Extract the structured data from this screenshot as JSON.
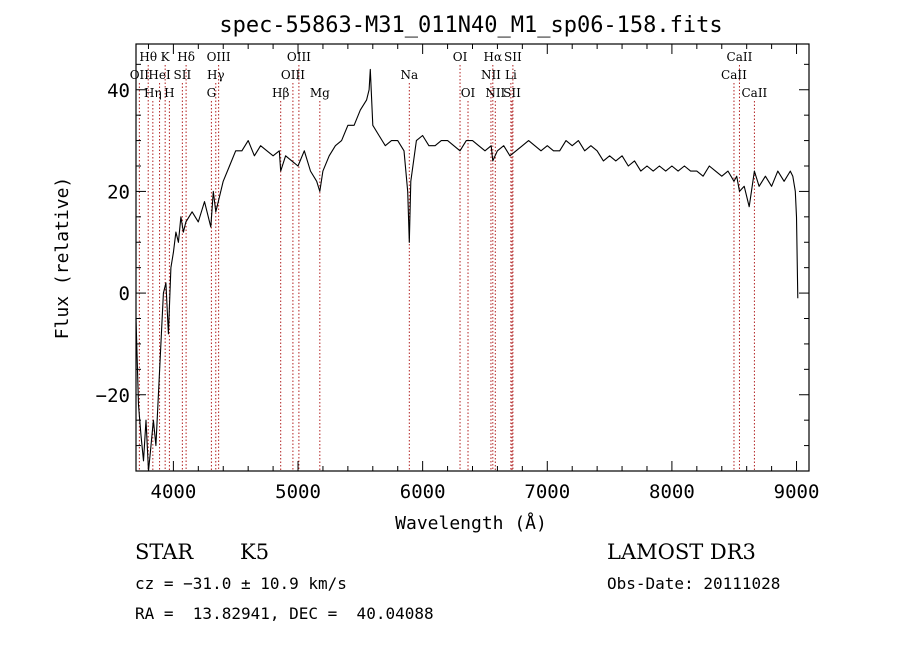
{
  "chart_data": {
    "type": "line",
    "title": "spec-55863-M31_011N40_M1_sp06-158.fits",
    "xlabel": "Wavelength (Å)",
    "ylabel": "Flux (relative)",
    "xlim": [
      3700,
      9100
    ],
    "ylim": [
      -35,
      49
    ],
    "x_ticks": [
      4000,
      5000,
      6000,
      7000,
      8000,
      9000
    ],
    "x_tick_labels": [
      "4000",
      "5000",
      "6000",
      "7000",
      "8000",
      "9000"
    ],
    "y_ticks": [
      -20,
      0,
      20,
      40
    ],
    "y_tick_labels": [
      "−20",
      "0",
      "20",
      "40"
    ],
    "grid": false,
    "series": [
      {
        "name": "spectrum",
        "color": "#000000",
        "x": [
          3700,
          3720,
          3740,
          3760,
          3780,
          3800,
          3820,
          3840,
          3860,
          3880,
          3900,
          3920,
          3940,
          3960,
          3980,
          4000,
          4020,
          4040,
          4060,
          4080,
          4100,
          4150,
          4200,
          4250,
          4300,
          4320,
          4340,
          4360,
          4400,
          4450,
          4500,
          4550,
          4600,
          4650,
          4700,
          4750,
          4800,
          4850,
          4861,
          4900,
          4950,
          5000,
          5050,
          5100,
          5150,
          5175,
          5200,
          5250,
          5300,
          5350,
          5400,
          5450,
          5500,
          5550,
          5570,
          5580,
          5600,
          5650,
          5700,
          5750,
          5800,
          5850,
          5880,
          5893,
          5905,
          5950,
          6000,
          6050,
          6100,
          6150,
          6200,
          6250,
          6300,
          6350,
          6400,
          6450,
          6500,
          6550,
          6563,
          6600,
          6650,
          6700,
          6750,
          6800,
          6850,
          6900,
          6950,
          7000,
          7050,
          7100,
          7150,
          7200,
          7250,
          7300,
          7350,
          7400,
          7450,
          7500,
          7550,
          7600,
          7650,
          7700,
          7750,
          7800,
          7850,
          7900,
          7950,
          8000,
          8050,
          8100,
          8150,
          8200,
          8250,
          8300,
          8350,
          8400,
          8450,
          8498,
          8520,
          8542,
          8580,
          8620,
          8662,
          8700,
          8750,
          8800,
          8850,
          8900,
          8950,
          8970,
          8990,
          9000,
          9010
        ],
        "y": [
          -5,
          -22,
          -28,
          -33,
          -25,
          -35,
          -30,
          -25,
          -30,
          -20,
          -10,
          0,
          2,
          -8,
          5,
          8,
          12,
          10,
          15,
          12,
          14,
          16,
          14,
          18,
          13,
          20,
          16,
          18,
          22,
          25,
          28,
          28,
          30,
          27,
          29,
          28,
          27,
          28,
          24,
          27,
          26,
          25,
          28,
          24,
          22,
          20,
          24,
          27,
          29,
          30,
          33,
          33,
          36,
          38,
          40,
          44,
          33,
          31,
          29,
          30,
          30,
          28,
          20,
          10,
          22,
          30,
          31,
          29,
          29,
          30,
          30,
          29,
          28,
          30,
          30,
          29,
          28,
          29,
          26,
          28,
          29,
          27,
          28,
          29,
          30,
          29,
          28,
          29,
          28,
          28,
          30,
          29,
          30,
          28,
          29,
          28,
          26,
          27,
          26,
          27,
          25,
          26,
          24,
          25,
          24,
          25,
          24,
          25,
          24,
          25,
          24,
          24,
          23,
          25,
          24,
          23,
          24,
          22,
          23,
          20,
          21,
          17,
          24,
          21,
          23,
          21,
          24,
          22,
          24,
          23,
          20,
          15,
          -1
        ]
      }
    ],
    "spectral_lines": [
      {
        "name": "Hθ",
        "x": 3798,
        "row": 1
      },
      {
        "name": "OII",
        "x": 3727,
        "row": 2
      },
      {
        "name": "Hη",
        "x": 3835,
        "row": 3
      },
      {
        "name": "HeI",
        "x": 3889,
        "row": 2
      },
      {
        "name": "K",
        "x": 3934,
        "row": 1
      },
      {
        "name": "SII",
        "x": 4072,
        "row": 2
      },
      {
        "name": "H",
        "x": 3968,
        "row": 3
      },
      {
        "name": "Hδ",
        "x": 4102,
        "row": 1
      },
      {
        "name": "OIII",
        "x": 4363,
        "row": 1
      },
      {
        "name": "Hγ",
        "x": 4340,
        "row": 2
      },
      {
        "name": "G",
        "x": 4305,
        "row": 3
      },
      {
        "name": "Hβ",
        "x": 4861,
        "row": 3
      },
      {
        "name": "OIII",
        "x": 5007,
        "row": 1
      },
      {
        "name": "OIII",
        "x": 4959,
        "row": 2
      },
      {
        "name": "Mg",
        "x": 5175,
        "row": 3
      },
      {
        "name": "Na",
        "x": 5893,
        "row": 2
      },
      {
        "name": "OI",
        "x": 6300,
        "row": 1
      },
      {
        "name": "OI",
        "x": 6364,
        "row": 3
      },
      {
        "name": "Hα",
        "x": 6563,
        "row": 1
      },
      {
        "name": "SII",
        "x": 6724,
        "row": 1
      },
      {
        "name": "NII",
        "x": 6548,
        "row": 2
      },
      {
        "name": "Li",
        "x": 6708,
        "row": 2
      },
      {
        "name": "NII",
        "x": 6583,
        "row": 3
      },
      {
        "name": "SII",
        "x": 6717,
        "row": 3
      },
      {
        "name": "CaII",
        "x": 8542,
        "row": 1
      },
      {
        "name": "CaII",
        "x": 8498,
        "row": 2
      },
      {
        "name": "CaII",
        "x": 8662,
        "row": 3
      }
    ]
  },
  "info": {
    "object_type": "STAR",
    "subclass": "K5",
    "survey": "LAMOST DR3",
    "redshift": "cz = −31.0 ± 10.9 km/s",
    "obs_date": "Obs-Date: 20111028",
    "coords": "RA =  13.82941, DEC =  40.04088"
  },
  "colors": {
    "line_marker": "#b22222",
    "spectrum": "#000000"
  }
}
